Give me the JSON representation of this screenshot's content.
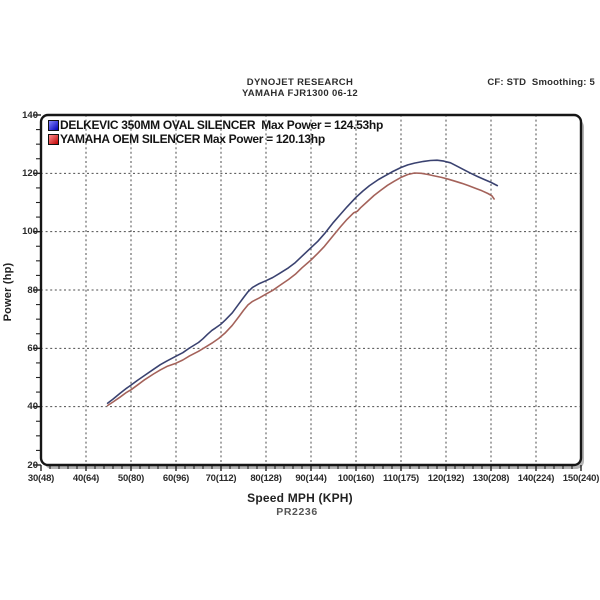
{
  "header": {
    "line1": "DYNOJET RESEARCH",
    "line2": "YAMAHA FJR1300 06-12",
    "cf_smoothing": "CF: STD  Smoothing: 5"
  },
  "footer": {
    "code": "PR2236"
  },
  "chart_data": {
    "type": "line",
    "title": "DYNOJET RESEARCH",
    "subtitle": "YAMAHA FJR1300 06-12",
    "annotations": {
      "cf": "STD",
      "smoothing": "5",
      "run_code": "PR2236"
    },
    "xlabel": "Speed MPH (KPH)",
    "ylabel": "Power (hp)",
    "xlim": [
      30,
      150
    ],
    "ylim": [
      20,
      140
    ],
    "grid": "dashed dark-gray at every 10 mph and every 20 hp",
    "legend_position": "top-left inside plot",
    "x_minor_step_mph": 2,
    "y_minor_step_hp": 5,
    "x_ticks": [
      {
        "mph": 30,
        "label": "30(48)"
      },
      {
        "mph": 40,
        "label": "40(64)"
      },
      {
        "mph": 50,
        "label": "50(80)"
      },
      {
        "mph": 60,
        "label": "60(96)"
      },
      {
        "mph": 70,
        "label": "70(112)"
      },
      {
        "mph": 80,
        "label": "80(128)"
      },
      {
        "mph": 90,
        "label": "90(144)"
      },
      {
        "mph": 100,
        "label": "100(160)"
      },
      {
        "mph": 110,
        "label": "110(175)"
      },
      {
        "mph": 120,
        "label": "120(192)"
      },
      {
        "mph": 130,
        "label": "130(208)"
      },
      {
        "mph": 140,
        "label": "140(224)"
      },
      {
        "mph": 150,
        "label": "150(240)"
      }
    ],
    "y_ticks": [
      {
        "hp": 20,
        "label": "20"
      },
      {
        "hp": 40,
        "label": "40"
      },
      {
        "hp": 60,
        "label": "60"
      },
      {
        "hp": 80,
        "label": "80"
      },
      {
        "hp": 100,
        "label": "100"
      },
      {
        "hp": 120,
        "label": "120"
      },
      {
        "hp": 140,
        "label": "140"
      }
    ],
    "series": [
      {
        "name": "DELKEVIC 350MM OVAL SILENCER",
        "legend_label": "DELKEVIC 350MM OVAL SILENCER  Max Power = 124.53hp",
        "max_power_hp": 124.53,
        "color": "#3a4270",
        "swatch_colors": [
          "#8585ff",
          "#0000b8"
        ],
        "points": [
          [
            44.8,
            41.2
          ],
          [
            46,
            42.6
          ],
          [
            47.5,
            44.5
          ],
          [
            49,
            46.3
          ],
          [
            50,
            47.4
          ],
          [
            51.5,
            49.1
          ],
          [
            53,
            50.7
          ],
          [
            55,
            52.8
          ],
          [
            56.5,
            54.4
          ],
          [
            58,
            55.7
          ],
          [
            60,
            57.3
          ],
          [
            61.5,
            58.5
          ],
          [
            63,
            60.1
          ],
          [
            65,
            62.0
          ],
          [
            66,
            63.3
          ],
          [
            67,
            64.8
          ],
          [
            68,
            66.2
          ],
          [
            68.8,
            67.0
          ],
          [
            70,
            68.3
          ],
          [
            71,
            69.8
          ],
          [
            72.5,
            72.2
          ],
          [
            74,
            75.3
          ],
          [
            75,
            77.4
          ],
          [
            76,
            79.4
          ],
          [
            77,
            80.9
          ],
          [
            78.5,
            82.2
          ],
          [
            80,
            83.2
          ],
          [
            81.5,
            84.3
          ],
          [
            83,
            85.7
          ],
          [
            85,
            87.6
          ],
          [
            86.5,
            89.4
          ],
          [
            88,
            91.6
          ],
          [
            90,
            94.5
          ],
          [
            91.5,
            96.7
          ],
          [
            93,
            99.3
          ],
          [
            95,
            103.2
          ],
          [
            96.5,
            105.9
          ],
          [
            98,
            108.5
          ],
          [
            100,
            111.8
          ],
          [
            101.5,
            113.9
          ],
          [
            103,
            115.8
          ],
          [
            105,
            117.9
          ],
          [
            106.5,
            119.2
          ],
          [
            108,
            120.5
          ],
          [
            110,
            122.0
          ],
          [
            111.5,
            122.9
          ],
          [
            113,
            123.5
          ],
          [
            115,
            124.1
          ],
          [
            116.5,
            124.4
          ],
          [
            118,
            124.5
          ],
          [
            119.5,
            124.2
          ],
          [
            121,
            123.6
          ],
          [
            122.5,
            122.4
          ],
          [
            124,
            121.2
          ],
          [
            125.5,
            120.0
          ],
          [
            127,
            118.9
          ],
          [
            128.5,
            117.9
          ],
          [
            130,
            116.9
          ],
          [
            131.4,
            115.8
          ]
        ]
      },
      {
        "name": "YAMAHA OEM SILENCER",
        "legend_label": "YAMAHA OEM SILENCER Max Power = 120.13hp",
        "max_power_hp": 120.13,
        "color": "#a4625a",
        "swatch_colors": [
          "#ff8f8f",
          "#c00000"
        ],
        "points": [
          [
            44.8,
            40.4
          ],
          [
            46,
            41.6
          ],
          [
            47.5,
            43.2
          ],
          [
            49,
            44.9
          ],
          [
            50,
            45.8
          ],
          [
            51.5,
            47.5
          ],
          [
            53,
            49.2
          ],
          [
            55,
            51.2
          ],
          [
            56.5,
            52.6
          ],
          [
            58,
            53.8
          ],
          [
            60,
            54.9
          ],
          [
            61.5,
            56.0
          ],
          [
            63,
            57.4
          ],
          [
            65,
            59.0
          ],
          [
            66.5,
            60.4
          ],
          [
            68,
            61.8
          ],
          [
            69.5,
            63.4
          ],
          [
            71,
            65.4
          ],
          [
            72.5,
            67.9
          ],
          [
            74,
            70.9
          ],
          [
            75,
            73.0
          ],
          [
            76,
            74.9
          ],
          [
            77,
            76.1
          ],
          [
            78.5,
            77.3
          ],
          [
            80,
            78.6
          ],
          [
            81.5,
            79.9
          ],
          [
            83,
            81.5
          ],
          [
            85,
            83.6
          ],
          [
            86.5,
            85.4
          ],
          [
            88,
            87.6
          ],
          [
            90,
            90.3
          ],
          [
            91.5,
            92.6
          ],
          [
            93,
            95.0
          ],
          [
            95,
            98.8
          ],
          [
            96.5,
            101.6
          ],
          [
            98,
            104.2
          ],
          [
            99.5,
            106.5
          ],
          [
            100.3,
            107.0
          ],
          [
            101,
            108.2
          ],
          [
            102.5,
            110.3
          ],
          [
            104,
            112.4
          ],
          [
            105.5,
            114.2
          ],
          [
            107,
            115.9
          ],
          [
            108.5,
            117.3
          ],
          [
            110,
            118.6
          ],
          [
            111.5,
            119.6
          ],
          [
            113,
            120.1
          ],
          [
            114.5,
            120.0
          ],
          [
            116,
            119.6
          ],
          [
            117.5,
            119.1
          ],
          [
            119,
            118.6
          ],
          [
            120.5,
            118.0
          ],
          [
            122,
            117.3
          ],
          [
            123.5,
            116.6
          ],
          [
            125,
            115.8
          ],
          [
            126.5,
            114.9
          ],
          [
            128,
            114.0
          ],
          [
            129.3,
            113.1
          ],
          [
            130.2,
            112.3
          ],
          [
            130.7,
            111.2
          ]
        ]
      }
    ]
  }
}
